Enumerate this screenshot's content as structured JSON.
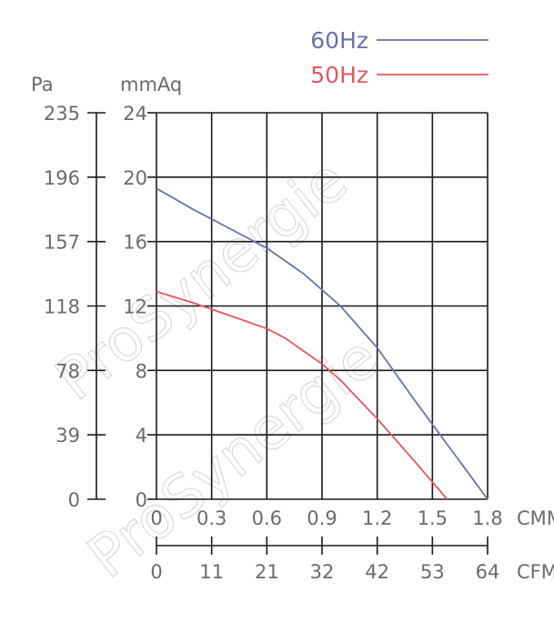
{
  "chart_data": {
    "type": "line",
    "x_primary_label": "CMM",
    "x_primary_ticks": [
      "0",
      "0.3",
      "0.6",
      "0.9",
      "1.2",
      "1.5",
      "1.8"
    ],
    "x_secondary_label": "CFM",
    "x_secondary_ticks": [
      "0",
      "11",
      "21",
      "32",
      "42",
      "53",
      "64"
    ],
    "y_left_label": "Pa",
    "y_left_ticks": [
      "0",
      "39",
      "78",
      "118",
      "157",
      "196",
      "235"
    ],
    "y_right_label": "mmAq",
    "y_right_ticks": [
      "0",
      "4",
      "8",
      "12",
      "16",
      "20",
      "24"
    ],
    "xlim": [
      0,
      1.8
    ],
    "ylim": [
      0,
      24
    ],
    "grid": true,
    "legend_position": "top-right",
    "series": [
      {
        "name": "60Hz",
        "color": "#6a73ad",
        "x": [
          0,
          0.2,
          0.4,
          0.6,
          0.8,
          1.0,
          1.2,
          1.4,
          1.6,
          1.8
        ],
        "y": [
          19.3,
          18.0,
          16.8,
          15.6,
          14.0,
          12.0,
          9.4,
          6.2,
          3.1,
          0
        ]
      },
      {
        "name": "50Hz",
        "color": "#e05a60",
        "x": [
          0,
          0.2,
          0.4,
          0.6,
          0.7,
          0.8,
          0.9,
          1.0,
          1.2,
          1.4,
          1.58
        ],
        "y": [
          12.9,
          12.2,
          11.4,
          10.6,
          10.0,
          9.2,
          8.4,
          7.4,
          5.0,
          2.4,
          0
        ]
      }
    ],
    "watermark": "ProSynergie"
  }
}
